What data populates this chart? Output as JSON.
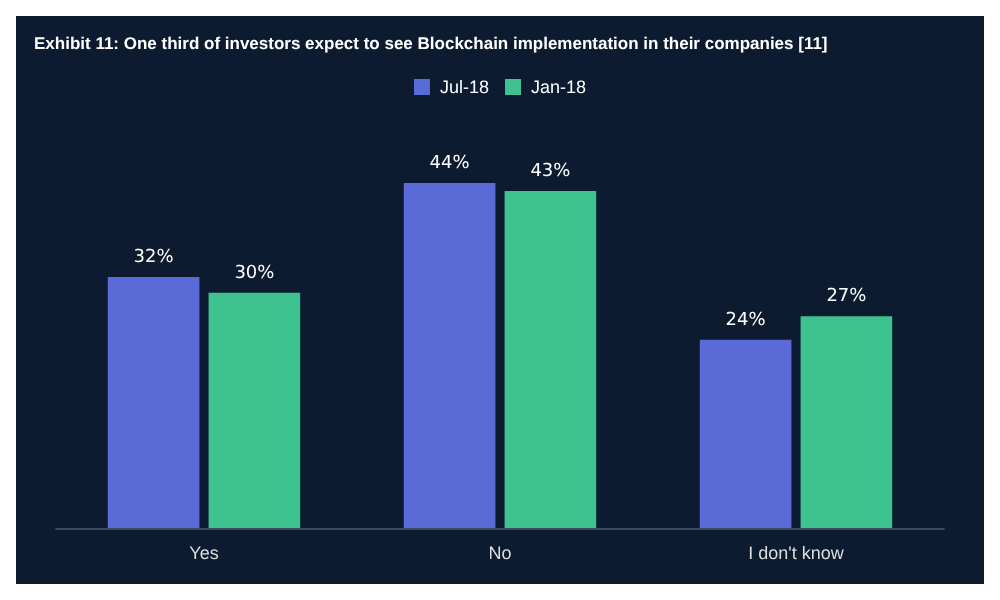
{
  "chart_data": {
    "type": "bar",
    "title": "Exhibit 11: One third of investors expect to see Blockchain implementation in their companies [11]",
    "categories": [
      "Yes",
      "No",
      "I don't know"
    ],
    "series": [
      {
        "name": "Jul-18",
        "color": "#5a6bd8",
        "values": [
          32,
          44,
          24
        ],
        "value_labels": [
          "32%",
          "44%",
          "24%"
        ]
      },
      {
        "name": "Jan-18",
        "color": "#3ec28f",
        "values": [
          30,
          43,
          27
        ],
        "value_labels": [
          "30%",
          "43%",
          "27%"
        ]
      }
    ],
    "legend": "top",
    "tick_labels": "x"
  }
}
